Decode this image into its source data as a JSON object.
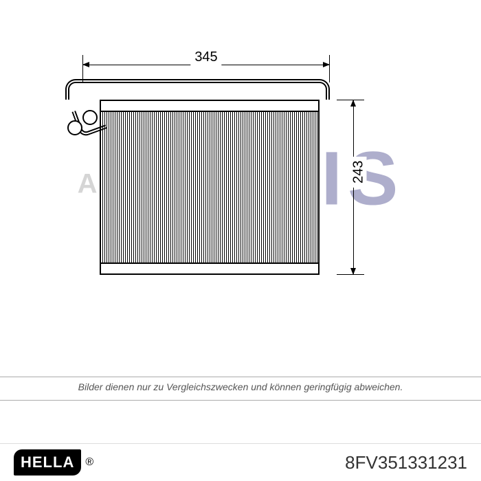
{
  "diagram": {
    "type": "technical-drawing",
    "width_mm": "345",
    "height_mm": "243",
    "colors": {
      "line": "#000000",
      "background": "#ffffff",
      "watermark_red": "#b81414",
      "watermark_blue": "#1a1a6e",
      "watermark_grey": "#8a8a8a"
    },
    "watermark": {
      "prefix": "AKS",
      "main": "DASIS"
    }
  },
  "disclaimer": "Bilder dienen nur zu Vergleichszwecken und können geringfügig abweichen.",
  "footer": {
    "brand": "HELLA",
    "registered": "®",
    "part_number": "8FV351331231"
  }
}
